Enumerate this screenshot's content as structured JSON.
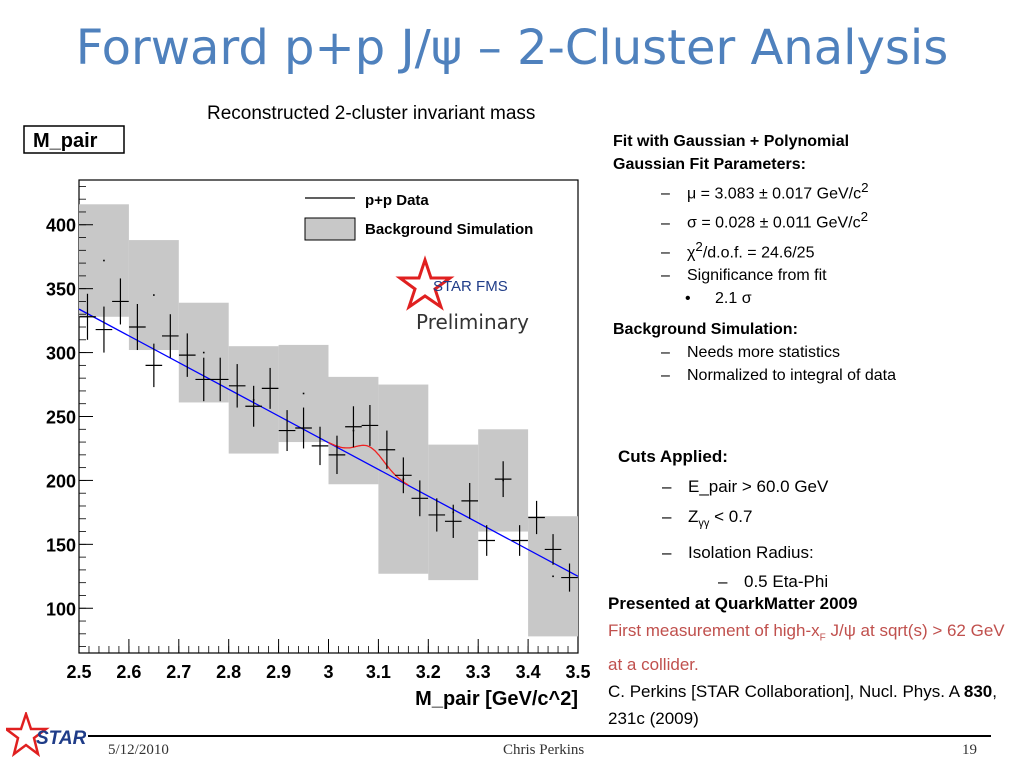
{
  "slide": {
    "title": "Forward p+p J/ψ – 2-Cluster Analysis",
    "subtitle": "Reconstructed 2-cluster invariant mass"
  },
  "chart_data": {
    "type": "scatter",
    "histogram_title": "M_pair",
    "xlabel": "M_pair [GeV/c^2]",
    "ylabel": "",
    "xlim": [
      2.5,
      3.5
    ],
    "ylim": [
      65,
      435
    ],
    "xticks": [
      "2.5",
      "2.6",
      "2.7",
      "2.8",
      "2.9",
      "3",
      "3.1",
      "3.2",
      "3.3",
      "3.4",
      "3.5"
    ],
    "yticks": [
      "100",
      "150",
      "200",
      "250",
      "300",
      "350",
      "400"
    ],
    "legend_position": "top-right",
    "legend": [
      "p+p Data",
      "Background Simulation"
    ],
    "stamp": {
      "logo": "STAR FMS",
      "text": "Preliminary"
    },
    "series": [
      {
        "name": "p+p Data",
        "bin_width": 0.0333,
        "x": [
          2.517,
          2.55,
          2.583,
          2.617,
          2.65,
          2.683,
          2.717,
          2.75,
          2.783,
          2.817,
          2.85,
          2.883,
          2.917,
          2.95,
          2.983,
          3.017,
          3.05,
          3.083,
          3.117,
          3.15,
          3.183,
          3.217,
          3.25,
          3.283,
          3.317,
          3.35,
          3.383,
          3.417,
          3.45,
          3.483
        ],
        "y": [
          328,
          318,
          340,
          320,
          290,
          313,
          298,
          279,
          279,
          274,
          258,
          272,
          239,
          241,
          227,
          220,
          242,
          243,
          224,
          204,
          186,
          173,
          168,
          184,
          153,
          201,
          153,
          171,
          146,
          124
        ],
        "yerr": [
          18,
          18,
          18,
          18,
          17,
          17,
          17,
          17,
          17,
          17,
          16,
          16,
          16,
          16,
          15,
          15,
          16,
          16,
          15,
          14,
          14,
          13,
          13,
          14,
          12,
          14,
          12,
          13,
          12,
          11
        ]
      },
      {
        "name": "Background Simulation",
        "x_low": [
          2.5,
          2.6,
          2.7,
          2.8,
          2.9,
          3.0,
          3.1,
          3.2,
          3.3,
          3.4
        ],
        "x_high": [
          2.6,
          2.7,
          2.8,
          2.9,
          3.0,
          3.1,
          3.2,
          3.3,
          3.4,
          3.5
        ],
        "y": [
          372,
          345,
          300,
          263,
          268,
          239,
          201,
          175,
          200,
          125
        ],
        "yerr": [
          44,
          43,
          39,
          42,
          38,
          42,
          74,
          53,
          40,
          47
        ]
      },
      {
        "name": "Background fit (polynomial)",
        "x": [
          2.5,
          3.5
        ],
        "y": [
          334,
          125
        ]
      },
      {
        "name": "Gaussian + Polynomial fit",
        "mu": 3.083,
        "sigma": 0.028,
        "amplitude": 14,
        "x_range": [
          3.0,
          3.16
        ]
      }
    ]
  },
  "fit_panel": {
    "heading": "Fit with Gaussian + Polynomial",
    "params_heading": "Gaussian Fit Parameters:",
    "dash": "–",
    "bullet": "•",
    "mu": "μ = 3.083 ± 0.017 GeV/c",
    "sigma": "σ = 0.028 ± 0.011 GeV/c",
    "chi2_a": "χ",
    "chi2_b": "/d.o.f. =  24.6/25",
    "sup2": "2",
    "significance": "Significance from fit",
    "sig_value": "2.1 σ"
  },
  "background_panel": {
    "heading": "Background Simulation:",
    "item1": "Needs more statistics",
    "item2": "Normalized to integral of data"
  },
  "cuts": {
    "heading": "Cuts Applied:",
    "epair": "E_pair > 60.0 GeV",
    "zgg_a": "Z",
    "zgg_sub": "γγ",
    "zgg_b": " < 0.7",
    "iso": "Isolation Radius:",
    "iso_val": "0.5 Eta-Phi"
  },
  "presented": {
    "heading": "Presented at QuarkMatter 2009",
    "red_a": "First measurement of high-x",
    "red_sub": "F",
    "red_b": " J/ψ at  sqrt(s) > 62 GeV at a collider.",
    "ref_a": "C. Perkins [STAR Collaboration], Nucl. Phys. A ",
    "ref_bold": "830",
    "ref_b": ", 231c (2009)"
  },
  "footer": {
    "date": "5/12/2010",
    "author": "Chris Perkins",
    "page": "19",
    "logo_text": "STAR"
  },
  "colors": {
    "title": "#4f81bd",
    "fit_line": "#0000ff",
    "gauss": "#ee2222",
    "band": "#c8c8c8",
    "red_text": "#c0504d",
    "star_red": "#e02020",
    "star_blue": "#1f3c88"
  }
}
